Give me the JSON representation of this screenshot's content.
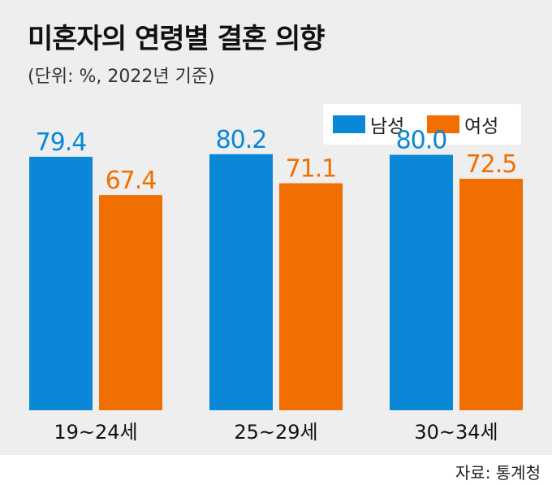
{
  "title": "미혼자의 연령별 결혼 의향",
  "subtitle": "(단위: %, 2022년 기준)",
  "source": "자료: 통계청",
  "colors": {
    "male": "#0a87d6",
    "female": "#f06f00",
    "background": "#eeeeee"
  },
  "chart_data": {
    "type": "bar",
    "categories": [
      "19~24세",
      "25~29세",
      "30~34세"
    ],
    "series": [
      {
        "name": "남성",
        "values": [
          79.4,
          80.2,
          80.0
        ]
      },
      {
        "name": "여성",
        "values": [
          67.4,
          71.1,
          72.5
        ]
      }
    ],
    "value_labels": [
      [
        "79.4",
        "80.2",
        "80.0"
      ],
      [
        "67.4",
        "71.1",
        "72.5"
      ]
    ],
    "ylim": [
      0,
      100
    ],
    "grid": false,
    "legend": "top-right"
  }
}
